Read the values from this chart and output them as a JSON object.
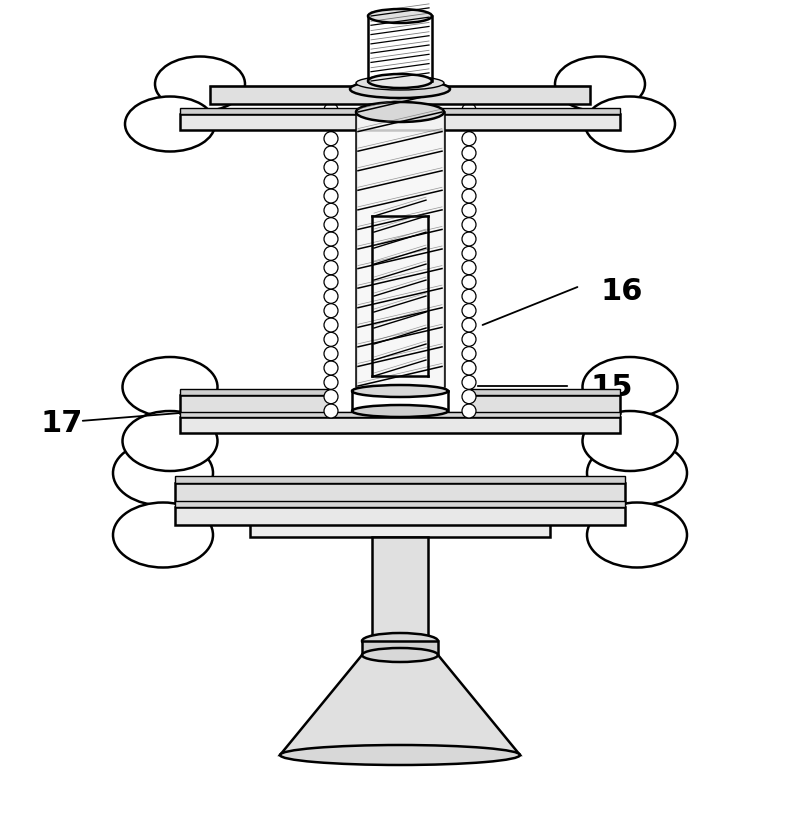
{
  "bg_color": "#ffffff",
  "line_color": "#000000",
  "figsize": [
    8.0,
    8.16
  ],
  "dpi": 100,
  "label_15": "15",
  "label_16": "16",
  "label_17": "17"
}
